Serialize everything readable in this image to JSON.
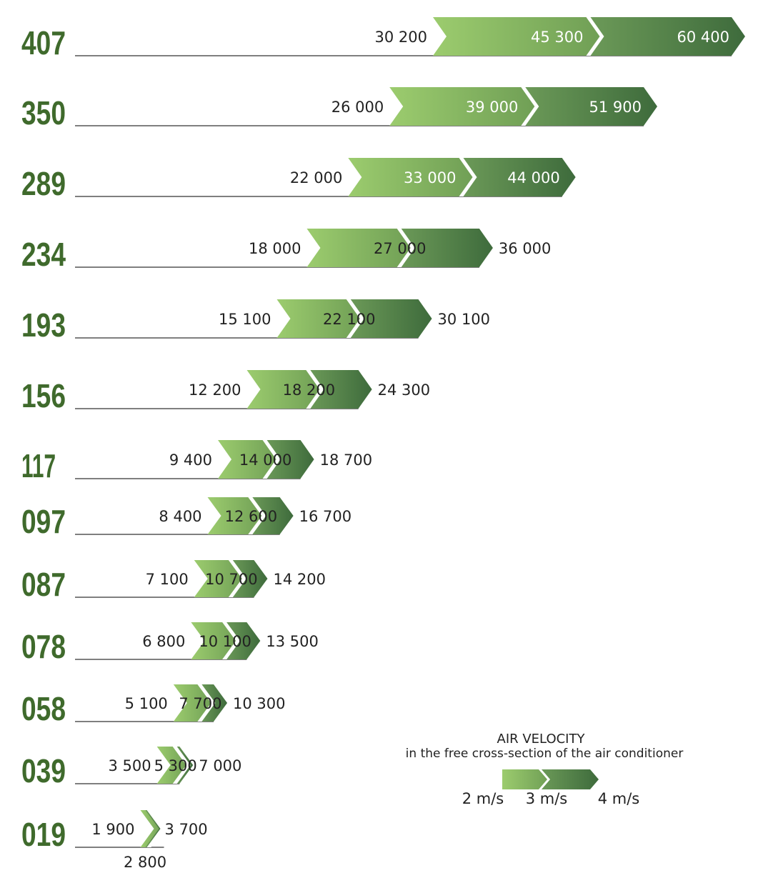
{
  "chart_data": {
    "type": "bar",
    "title": "",
    "xlabel": "",
    "ylabel": "",
    "categories": [
      "407",
      "350",
      "289",
      "234",
      "193",
      "156",
      "117",
      "097",
      "087",
      "078",
      "058",
      "039",
      "019"
    ],
    "series": [
      {
        "name": "2 m/s",
        "values": [
          30200,
          26000,
          22000,
          18000,
          15100,
          12200,
          9400,
          8400,
          7100,
          6800,
          5100,
          3500,
          1900
        ]
      },
      {
        "name": "3 m/s",
        "values": [
          45300,
          39000,
          33000,
          27000,
          22100,
          18200,
          14000,
          12600,
          10700,
          10100,
          7700,
          5300,
          2800
        ]
      },
      {
        "name": "4 m/s",
        "values": [
          60400,
          51900,
          44000,
          36000,
          30100,
          24300,
          18700,
          16700,
          14200,
          13500,
          10300,
          7000,
          3700
        ]
      }
    ],
    "labels": [
      [
        "30 200",
        "45 300",
        "60 400"
      ],
      [
        "26 000",
        "39 000",
        "51 900"
      ],
      [
        "22 000",
        "33 000",
        "44 000"
      ],
      [
        "18 000",
        "27 000",
        "36 000"
      ],
      [
        "15 100",
        "22 100",
        "30 100"
      ],
      [
        "12 200",
        "18 200",
        "24 300"
      ],
      [
        "9 400",
        "14 000",
        "18 700"
      ],
      [
        "8 400",
        "12 600",
        "16 700"
      ],
      [
        "7 100",
        "10 700",
        "14 200"
      ],
      [
        "6 800",
        "10 100",
        "13 500"
      ],
      [
        "5 100",
        "7 700",
        "10 300"
      ],
      [
        "3 500",
        "5 300",
        "7 000"
      ],
      [
        "1 900",
        "2 800",
        "3 700"
      ]
    ],
    "legend": {
      "title": "AIR VELOCITY",
      "subtitle": "in the free cross-section of the air conditioner",
      "placement": "bottom-right"
    },
    "colors": {
      "light_green_start": "#9ccc6e",
      "light_green_end": "#6f9e55",
      "dark_green_start": "#6c9a58",
      "dark_green_end": "#3e6b3c",
      "label_color": "#3f6a2c",
      "axis_line": "#333333"
    }
  }
}
